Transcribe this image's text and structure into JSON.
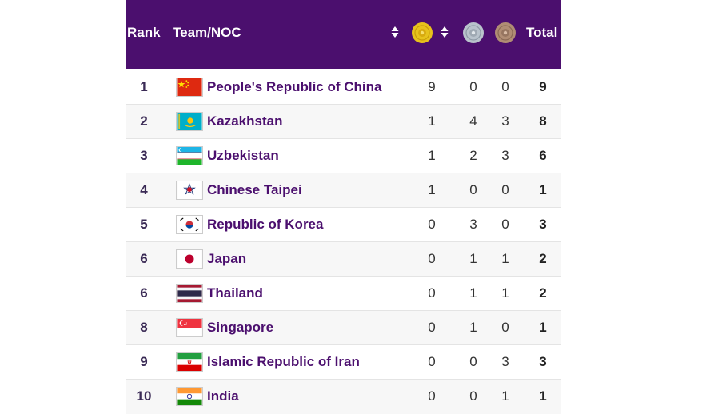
{
  "header": {
    "rank_label": "Rank",
    "team_label": "Team/NOC",
    "total_label": "Total",
    "gold_icon": "gold-medal-icon",
    "silver_icon": "silver-medal-icon",
    "bronze_icon": "bronze-medal-icon",
    "colors": {
      "header_bg": "#4b0f6e",
      "gold": "#e7c21c",
      "silver": "#b9c3cc",
      "bronze": "#b08d74"
    }
  },
  "rows": [
    {
      "rank": "1",
      "team": "People's Republic of China",
      "gold": "9",
      "silver": "0",
      "bronze": "0",
      "total": "9",
      "flag": "china-flag-icon"
    },
    {
      "rank": "2",
      "team": "Kazakhstan",
      "gold": "1",
      "silver": "4",
      "bronze": "3",
      "total": "8",
      "flag": "kazakhstan-flag-icon"
    },
    {
      "rank": "3",
      "team": "Uzbekistan",
      "gold": "1",
      "silver": "2",
      "bronze": "3",
      "total": "6",
      "flag": "uzbekistan-flag-icon"
    },
    {
      "rank": "4",
      "team": "Chinese Taipei",
      "gold": "1",
      "silver": "0",
      "bronze": "0",
      "total": "1",
      "flag": "chinese-taipei-flag-icon"
    },
    {
      "rank": "5",
      "team": "Republic of Korea",
      "gold": "0",
      "silver": "3",
      "bronze": "0",
      "total": "3",
      "flag": "korea-flag-icon"
    },
    {
      "rank": "6",
      "team": "Japan",
      "gold": "0",
      "silver": "1",
      "bronze": "1",
      "total": "2",
      "flag": "japan-flag-icon"
    },
    {
      "rank": "6",
      "team": "Thailand",
      "gold": "0",
      "silver": "1",
      "bronze": "1",
      "total": "2",
      "flag": "thailand-flag-icon"
    },
    {
      "rank": "8",
      "team": "Singapore",
      "gold": "0",
      "silver": "1",
      "bronze": "0",
      "total": "1",
      "flag": "singapore-flag-icon"
    },
    {
      "rank": "9",
      "team": "Islamic Republic of Iran",
      "gold": "0",
      "silver": "0",
      "bronze": "3",
      "total": "3",
      "flag": "iran-flag-icon"
    },
    {
      "rank": "10",
      "team": "India",
      "gold": "0",
      "silver": "0",
      "bronze": "1",
      "total": "1",
      "flag": "india-flag-icon"
    }
  ]
}
